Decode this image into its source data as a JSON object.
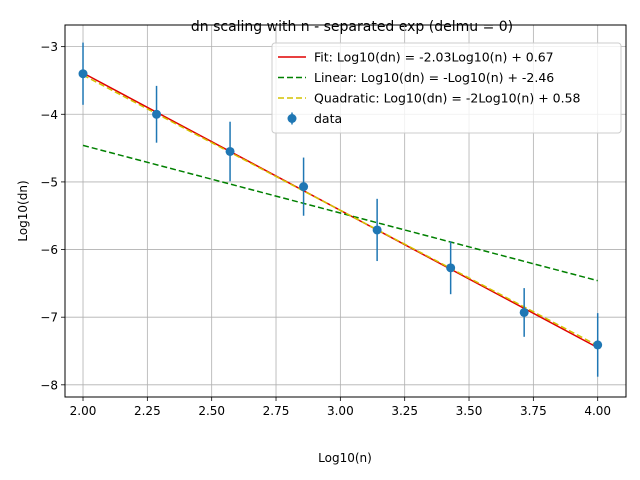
{
  "chart_data": {
    "type": "scatter",
    "title": "dn scaling with n - separated exp (delmu = 0)",
    "xlabel": "Log10(n)",
    "ylabel": "Log10(dn)",
    "xlim": [
      1.93,
      4.11
    ],
    "ylim": [
      -8.18,
      -2.68
    ],
    "xticks": [
      2.0,
      2.25,
      2.5,
      2.75,
      3.0,
      3.25,
      3.5,
      3.75,
      4.0
    ],
    "xtick_labels": [
      "2.00",
      "2.25",
      "2.50",
      "2.75",
      "3.00",
      "3.25",
      "3.50",
      "3.75",
      "4.00"
    ],
    "yticks": [
      -8,
      -7,
      -6,
      -5,
      -4,
      -3
    ],
    "ytick_labels": [
      "−8",
      "−7",
      "−6",
      "−5",
      "−4",
      "−3"
    ],
    "grid": true,
    "legend_position": "top-right",
    "series": [
      {
        "name": "Fit: Log10(dn) = -2.03Log10(n) + 0.67",
        "kind": "line",
        "color": "#e00000",
        "dash": "solid",
        "x": [
          2.0,
          4.0
        ],
        "y": [
          -3.39,
          -7.45
        ]
      },
      {
        "name": "Linear: Log10(dn) = -Log10(n) + -2.46",
        "kind": "line",
        "color": "#008000",
        "dash": "dashed",
        "x": [
          2.0,
          4.0
        ],
        "y": [
          -4.46,
          -6.46
        ]
      },
      {
        "name": "Quadratic: Log10(dn) = -2Log10(n) + 0.58",
        "kind": "line",
        "color": "#d4c200",
        "dash": "dashed",
        "x": [
          2.0,
          4.0
        ],
        "y": [
          -3.42,
          -7.42
        ]
      },
      {
        "name": "data",
        "kind": "errorbar",
        "color": "#1f77b4",
        "x": [
          2.0,
          2.2857,
          2.5714,
          2.8571,
          3.1429,
          3.4286,
          3.7143,
          4.0
        ],
        "y": [
          -3.4,
          -4.0,
          -4.55,
          -5.07,
          -5.71,
          -6.27,
          -6.93,
          -7.41
        ],
        "yerr": [
          0.46,
          0.42,
          0.44,
          0.43,
          0.46,
          0.39,
          0.36,
          0.47
        ]
      }
    ]
  }
}
